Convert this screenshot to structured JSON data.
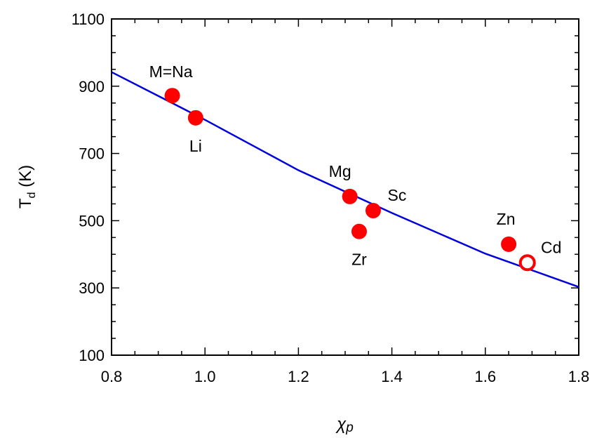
{
  "chart_data": {
    "type": "scatter",
    "xlabel": "χp",
    "ylabel_main": "T",
    "ylabel_sub": "d",
    "ylabel_unit": " (K)",
    "xlim": [
      0.8,
      1.8
    ],
    "ylim": [
      100,
      1100
    ],
    "x_ticks": [
      "0.8",
      "1.0",
      "1.2",
      "1.4",
      "1.6",
      "1.8"
    ],
    "y_ticks": [
      "100",
      "300",
      "500",
      "700",
      "900",
      "1100"
    ],
    "grid": false,
    "points": [
      {
        "label": "M=Na",
        "x": 0.93,
        "y": 872,
        "filled": true,
        "label_pos": "above-left"
      },
      {
        "label": "Li",
        "x": 0.98,
        "y": 806,
        "filled": true,
        "label_pos": "below"
      },
      {
        "label": "Mg",
        "x": 1.31,
        "y": 572,
        "filled": true,
        "label_pos": "above-left"
      },
      {
        "label": "Sc",
        "x": 1.36,
        "y": 530,
        "filled": true,
        "label_pos": "above-right"
      },
      {
        "label": "Zr",
        "x": 1.33,
        "y": 468,
        "filled": true,
        "label_pos": "below"
      },
      {
        "label": "Zn",
        "x": 1.65,
        "y": 430,
        "filled": true,
        "label_pos": "above-left"
      },
      {
        "label": "Cd",
        "x": 1.69,
        "y": 375,
        "filled": false,
        "label_pos": "above-right"
      }
    ],
    "fit_line": {
      "x": [
        0.8,
        1.0,
        1.2,
        1.4,
        1.6,
        1.8
      ],
      "y": [
        942,
        800,
        650,
        523,
        402,
        303
      ]
    },
    "colors": {
      "points": "#ff0000",
      "line": "#0000dd",
      "axes": "#000000"
    }
  }
}
